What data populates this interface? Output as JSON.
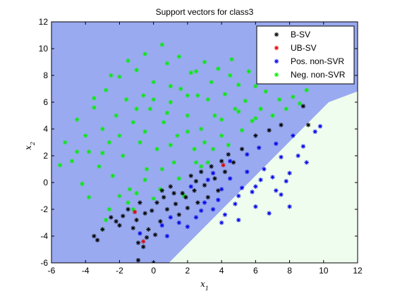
{
  "chart_data": {
    "type": "scatter",
    "title": "Support vectors for class3",
    "xlabel": "x1",
    "ylabel": "x2",
    "xlim": [
      -6,
      12
    ],
    "ylim": [
      -6,
      12
    ],
    "xticks": [
      "-6",
      "-4",
      "-2",
      "0",
      "2",
      "4",
      "6",
      "8",
      "10",
      "12"
    ],
    "yticks": [
      "-6",
      "-4",
      "-2",
      "0",
      "2",
      "4",
      "6",
      "8",
      "10",
      "12"
    ],
    "grid": false,
    "legend_position": "top-right",
    "marker": "*",
    "regions": [
      {
        "name": "negative region",
        "color": "#99AAF0"
      },
      {
        "name": "positive region",
        "color": "#EEFDEE"
      }
    ],
    "boundary": [
      [
        0.9,
        -6
      ],
      [
        10.3,
        6
      ],
      [
        12.4,
        7
      ]
    ],
    "series": [
      {
        "name": "B-SV",
        "color": "#000000",
        "points": [
          [
            -3.5,
            -4
          ],
          [
            -3.3,
            -4.3
          ],
          [
            -3,
            -3.5
          ],
          [
            -2.5,
            -2.6
          ],
          [
            -2,
            -3.2
          ],
          [
            -2.2,
            -2.9
          ],
          [
            -1.8,
            -2.5
          ],
          [
            -1.5,
            -2
          ],
          [
            -1.2,
            -3.4
          ],
          [
            -1,
            -2.8
          ],
          [
            -0.8,
            -1.5
          ],
          [
            -0.5,
            -2.3
          ],
          [
            -0.3,
            -3.5
          ],
          [
            -0.1,
            -2.1
          ],
          [
            0.2,
            -1.5
          ],
          [
            0.4,
            -2.9
          ],
          [
            0.6,
            -1.1
          ],
          [
            0.8,
            -2
          ],
          [
            1,
            -0.3
          ],
          [
            1.3,
            -1.6
          ],
          [
            1.5,
            -2.4
          ],
          [
            1.7,
            -0.8
          ],
          [
            2,
            -1.9
          ],
          [
            2.2,
            0.5
          ],
          [
            2.4,
            -0.6
          ],
          [
            2.6,
            -1.5
          ],
          [
            2.8,
            0.8
          ],
          [
            3,
            -0.2
          ],
          [
            3.2,
            -1.1
          ],
          [
            3.4,
            1.2
          ],
          [
            3.6,
            0.3
          ],
          [
            3.8,
            -0.6
          ],
          [
            4,
            1.6
          ],
          [
            4.2,
            0.8
          ],
          [
            4.4,
            2.1
          ],
          [
            4.7,
            1.5
          ],
          [
            5.2,
            2.5
          ],
          [
            6,
            3.5
          ],
          [
            6.8,
            3.9
          ],
          [
            7.5,
            4.3
          ],
          [
            8.8,
            5.7
          ],
          [
            9.1,
            4.3
          ],
          [
            -0.9,
            -4.5
          ],
          [
            -0.4,
            -4.1
          ],
          [
            0.1,
            -3.9
          ],
          [
            -0.6,
            -4.8
          ],
          [
            -0.9,
            -5.8
          ],
          [
            0,
            -6
          ],
          [
            1.9,
            -1.1
          ],
          [
            2.5,
            0.1
          ],
          [
            1.2,
            -0.8
          ],
          [
            0.5,
            -0.6
          ]
        ]
      },
      {
        "name": "UB-SV",
        "color": "#E00000",
        "points": [
          [
            -1.1,
            -2.2
          ],
          [
            4.1,
            1.3
          ],
          [
            -0.6,
            -4.4
          ]
        ]
      },
      {
        "name": "Pos. non-SVR",
        "color": "#0000E8",
        "points": [
          [
            3,
            -1.5
          ],
          [
            3.5,
            -2
          ],
          [
            4,
            -0.5
          ],
          [
            4.5,
            0.3
          ],
          [
            5,
            -1
          ],
          [
            5.5,
            0.8
          ],
          [
            6,
            -0.3
          ],
          [
            6.5,
            1
          ],
          [
            7,
            0.4
          ],
          [
            7.5,
            1.9
          ],
          [
            8,
            0.7
          ],
          [
            8.5,
            2
          ],
          [
            9.5,
            3.8
          ],
          [
            4.2,
            -2.4
          ],
          [
            5,
            -2.8
          ],
          [
            6,
            -1.8
          ],
          [
            6.8,
            -2.3
          ],
          [
            7.5,
            -0.9
          ],
          [
            8,
            -1.8
          ],
          [
            2.5,
            -2.6
          ],
          [
            2,
            -3.3
          ],
          [
            1.5,
            -3
          ],
          [
            3.5,
            0.7
          ],
          [
            4.5,
            1.6
          ],
          [
            5.5,
            2.1
          ],
          [
            6.2,
            2.6
          ],
          [
            7.2,
            2.9
          ],
          [
            8.2,
            3.5
          ],
          [
            8.8,
            2.7
          ],
          [
            5.8,
            -0.7
          ],
          [
            3.8,
            -1.3
          ],
          [
            2.8,
            -2.1
          ],
          [
            4.8,
            -1.6
          ],
          [
            6.3,
            0.2
          ],
          [
            7.8,
            0.1
          ],
          [
            9,
            1.5
          ],
          [
            0.5,
            -3.2
          ],
          [
            1,
            -2.6
          ],
          [
            9.8,
            4.2
          ],
          [
            3.2,
            0.2
          ],
          [
            2.2,
            -0.3
          ],
          [
            5.2,
            -0.4
          ],
          [
            7.2,
            -0.6
          ],
          [
            4,
            -3
          ],
          [
            0.8,
            -4
          ],
          [
            -0.8,
            -3.8
          ]
        ]
      },
      {
        "name": "Neg. non-SVR",
        "color": "#00EE00",
        "points": [
          [
            -5.2,
            3
          ],
          [
            -4.8,
            1.6
          ],
          [
            -4.5,
            4.7
          ],
          [
            -4.2,
            -0.1
          ],
          [
            -4,
            3.5
          ],
          [
            -3.8,
            2.3
          ],
          [
            -3.5,
            5.6
          ],
          [
            -3.2,
            1.2
          ],
          [
            -3,
            4
          ],
          [
            -2.8,
            6.9
          ],
          [
            -2.6,
            3
          ],
          [
            -2.4,
            0.5
          ],
          [
            -2.2,
            5
          ],
          [
            -2,
            7.9
          ],
          [
            -1.8,
            2
          ],
          [
            -1.6,
            6.2
          ],
          [
            -1.4,
            -0.5
          ],
          [
            -1.2,
            4.5
          ],
          [
            -1,
            8.4
          ],
          [
            -0.8,
            3
          ],
          [
            -0.6,
            6.5
          ],
          [
            -0.4,
            1
          ],
          [
            -0.2,
            5.5
          ],
          [
            0,
            7.5
          ],
          [
            0.2,
            2.5
          ],
          [
            0.4,
            -0.5
          ],
          [
            0.6,
            4.5
          ],
          [
            0.8,
            8.9
          ],
          [
            1,
            6
          ],
          [
            1.2,
            1.5
          ],
          [
            1.4,
            3.5
          ],
          [
            1.6,
            7
          ],
          [
            1.8,
            -1
          ],
          [
            2,
            5
          ],
          [
            2.2,
            8.2
          ],
          [
            2.4,
            2.5
          ],
          [
            2.6,
            6.5
          ],
          [
            2.8,
            4
          ],
          [
            3,
            9
          ],
          [
            3.2,
            1.5
          ],
          [
            3.4,
            7.5
          ],
          [
            3.6,
            5
          ],
          [
            3.8,
            8.5
          ],
          [
            4,
            3.5
          ],
          [
            4.2,
            6.6
          ],
          [
            4.4,
            2.8
          ],
          [
            4.6,
            9.2
          ],
          [
            4.8,
            5.5
          ],
          [
            5,
            7.3
          ],
          [
            5.2,
            3.9
          ],
          [
            5.4,
            6.1
          ],
          [
            5.6,
            8.3
          ],
          [
            5.8,
            4.6
          ],
          [
            6,
            7.2
          ],
          [
            6.3,
            5.5
          ],
          [
            6.6,
            6.8
          ],
          [
            7,
            5
          ],
          [
            7.4,
            6.2
          ],
          [
            7.8,
            5.5
          ],
          [
            8.2,
            6.4
          ],
          [
            8.6,
            5.9
          ],
          [
            9,
            6.9
          ],
          [
            -3,
            -3.5
          ],
          [
            -2.6,
            -2
          ],
          [
            -2,
            -1
          ],
          [
            -1.5,
            -1.5
          ],
          [
            -1,
            -0.8
          ],
          [
            -0.5,
            0.2
          ],
          [
            0.5,
            1
          ],
          [
            1.5,
            0.3
          ],
          [
            2.5,
            1.5
          ],
          [
            -2.5,
            8
          ],
          [
            -1.5,
            9.1
          ],
          [
            -0.5,
            9.6
          ],
          [
            0.5,
            10.3
          ],
          [
            1.5,
            9.4
          ],
          [
            2.5,
            8.3
          ],
          [
            -3.5,
            6.3
          ],
          [
            -4.5,
            2.3
          ],
          [
            -5.5,
            1.3
          ],
          [
            -3.8,
            -1.1
          ],
          [
            -2.8,
            -2.8
          ],
          [
            -1.2,
            -2
          ],
          [
            0,
            -1.2
          ],
          [
            1,
            2.8
          ],
          [
            2,
            3.8
          ],
          [
            3,
            3
          ],
          [
            4,
            4.7
          ],
          [
            5,
            5.3
          ],
          [
            6,
            4.8
          ],
          [
            3.5,
            2.5
          ],
          [
            2.8,
            1.2
          ],
          [
            -1,
            5.5
          ],
          [
            0,
            6.2
          ],
          [
            1,
            7.2
          ],
          [
            2,
            6.5
          ],
          [
            -2,
            3.5
          ],
          [
            -3,
            2.2
          ],
          [
            -0.5,
            3.8
          ],
          [
            0.8,
            5.2
          ],
          [
            4.5,
            8
          ],
          [
            3.2,
            6.2
          ]
        ]
      }
    ]
  }
}
